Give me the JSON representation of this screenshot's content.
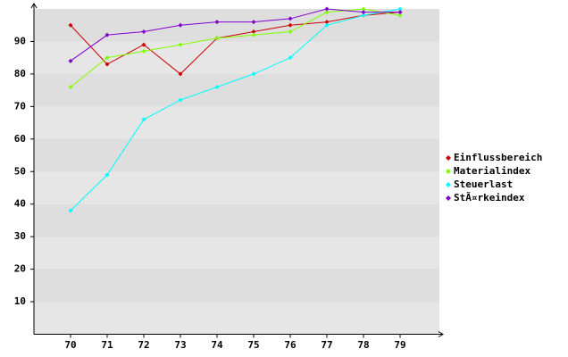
{
  "chart_data": {
    "type": "line",
    "categories": [
      "70",
      "71",
      "72",
      "73",
      "74",
      "75",
      "76",
      "77",
      "78",
      "79"
    ],
    "series": [
      {
        "name": "Einflussbereich",
        "color": "#cc0000",
        "values": [
          95,
          83,
          89,
          80,
          91,
          93,
          95,
          96,
          98,
          99
        ]
      },
      {
        "name": "Materialindex",
        "color": "#80ff00",
        "values": [
          76,
          85,
          87,
          89,
          91,
          92,
          93,
          99,
          100,
          98
        ]
      },
      {
        "name": "Steuerlast",
        "color": "#00ffff",
        "values": [
          38,
          49,
          66,
          72,
          76,
          80,
          85,
          95,
          98,
          100
        ]
      },
      {
        "name": "StÃ¤rkeindex",
        "color": "#8000cc",
        "values": [
          84,
          92,
          93,
          95,
          96,
          96,
          97,
          100,
          99,
          99
        ]
      }
    ],
    "ylim": [
      0,
      100
    ],
    "yticks": [
      10,
      20,
      30,
      40,
      50,
      60,
      70,
      80,
      90
    ],
    "grid": true,
    "legend": "right"
  }
}
